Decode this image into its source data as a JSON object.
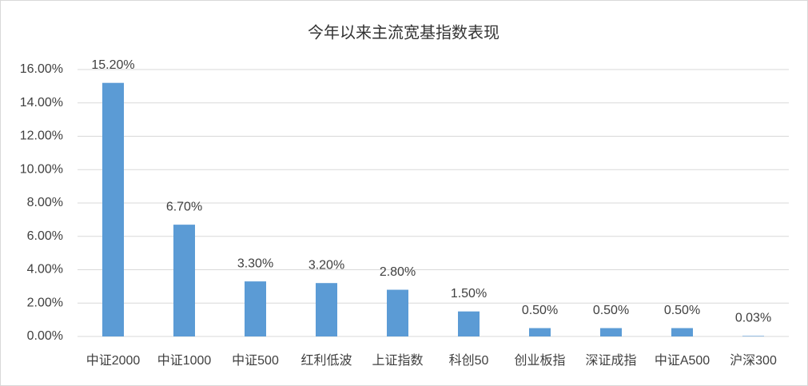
{
  "chart_data": {
    "type": "bar",
    "title": "今年以来主流宽基指数表现",
    "categories": [
      "中证2000",
      "中证1000",
      "中证500",
      "红利低波",
      "上证指数",
      "科创50",
      "创业板指",
      "深证成指",
      "中证A500",
      "沪深300"
    ],
    "values": [
      15.2,
      6.7,
      3.3,
      3.2,
      2.8,
      1.5,
      0.5,
      0.5,
      0.5,
      0.03
    ],
    "value_labels": [
      "15.20%",
      "6.70%",
      "3.30%",
      "3.20%",
      "2.80%",
      "1.50%",
      "0.50%",
      "0.50%",
      "0.50%",
      "0.03%"
    ],
    "color": "#5b9bd5",
    "ylim": [
      0,
      16
    ],
    "yticks": [
      {
        "value": 0,
        "label": "0.00%"
      },
      {
        "value": 2,
        "label": "2.00%"
      },
      {
        "value": 4,
        "label": "4.00%"
      },
      {
        "value": 6,
        "label": "6.00%"
      },
      {
        "value": 8,
        "label": "8.00%"
      },
      {
        "value": 10,
        "label": "10.00%"
      },
      {
        "value": 12,
        "label": "12.00%"
      },
      {
        "value": 14,
        "label": "14.00%"
      },
      {
        "value": 16,
        "label": "16.00%"
      }
    ],
    "grid": true
  }
}
